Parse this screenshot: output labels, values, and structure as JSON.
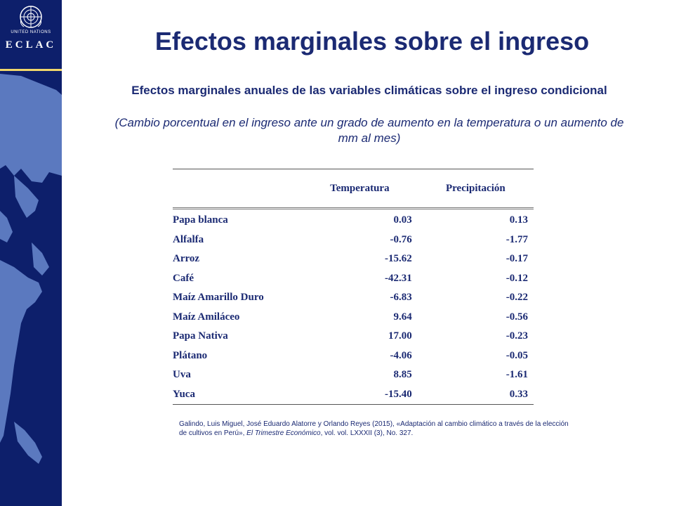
{
  "logo": {
    "org_line": "UNITED NATIONS",
    "acronym": "ECLAC"
  },
  "title": "Efectos marginales sobre el ingreso",
  "subtitle": "Efectos marginales anuales de las variables climáticas sobre el ingreso condicional",
  "subtitle_note": "(Cambio porcentual en el ingreso ante un grado de aumento en la temperatura o un aumento de mm al mes)",
  "table": {
    "headers": [
      "",
      "Temperatura",
      "Precipitación"
    ],
    "rows": [
      {
        "crop": "Papa blanca",
        "temperatura": "0.03",
        "precipitacion": "0.13"
      },
      {
        "crop": "Alfalfa",
        "temperatura": "-0.76",
        "precipitacion": "-1.77"
      },
      {
        "crop": "Arroz",
        "temperatura": "-15.62",
        "precipitacion": "-0.17"
      },
      {
        "crop": "Café",
        "temperatura": "-42.31",
        "precipitacion": "-0.12"
      },
      {
        "crop": "Maíz Amarillo Duro",
        "temperatura": "-6.83",
        "precipitacion": "-0.22"
      },
      {
        "crop": "Maíz Amiláceo",
        "temperatura": "9.64",
        "precipitacion": "-0.56"
      },
      {
        "crop": "Papa Nativa",
        "temperatura": "17.00",
        "precipitacion": "-0.23"
      },
      {
        "crop": "Plátano",
        "temperatura": "-4.06",
        "precipitacion": "-0.05"
      },
      {
        "crop": "Uva",
        "temperatura": "8.85",
        "precipitacion": "-1.61"
      },
      {
        "crop": "Yuca",
        "temperatura": "-15.40",
        "precipitacion": "0.33"
      }
    ]
  },
  "source": {
    "authors": "Galindo, Luis Miguel, José Eduardo Alatorre y Orlando Reyes (2015), «Adaptación al cambio climático a través de la elección de cultivos en Perú», ",
    "journal": "El Trimestre Económico",
    "details": ", vol. vol. LXXXII (3), No. 327."
  },
  "colors": {
    "band": "#0d1f6b",
    "map": "#5b79bf",
    "text": "#1b2a73",
    "accent_line": "#f1d76b"
  }
}
